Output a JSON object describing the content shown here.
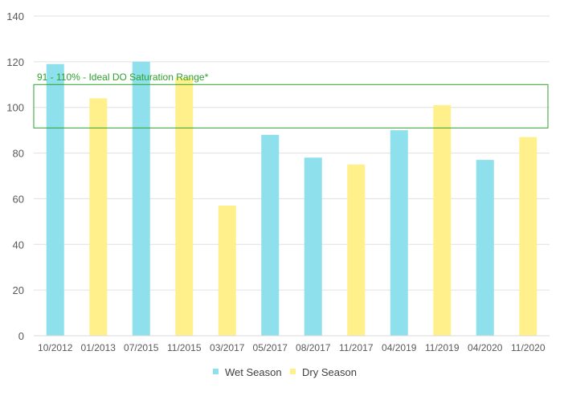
{
  "chart_data": {
    "type": "bar",
    "categories": [
      "10/2012",
      "01/2013",
      "07/2015",
      "11/2015",
      "03/2017",
      "05/2017",
      "08/2017",
      "11/2017",
      "04/2019",
      "11/2019",
      "04/2020",
      "11/2020"
    ],
    "series": [
      {
        "name": "Wet Season",
        "color": "#8ee0ec",
        "values": [
          119,
          null,
          120,
          null,
          null,
          88,
          78,
          null,
          90,
          null,
          77,
          null
        ]
      },
      {
        "name": "Dry Season",
        "color": "#fff08c",
        "values": [
          null,
          104,
          null,
          113,
          57,
          null,
          null,
          75,
          null,
          101,
          null,
          87
        ]
      }
    ],
    "ylim": [
      0,
      140
    ],
    "yticks": [
      0,
      20,
      40,
      60,
      80,
      100,
      120,
      140
    ],
    "grid": true,
    "legend_position": "bottom",
    "reference_band": {
      "low": 91,
      "high": 110,
      "label": "91 - 110% - Ideal DO Saturation Range*",
      "color": "#2ea02e"
    }
  }
}
